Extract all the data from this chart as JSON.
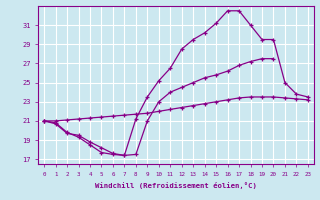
{
  "xlabel": "Windchill (Refroidissement éolien,°C)",
  "bg_color": "#cce8f0",
  "grid_color": "#ffffff",
  "line_color": "#880088",
  "xlim": [
    -0.5,
    23.5
  ],
  "ylim": [
    16.5,
    33.0
  ],
  "yticks": [
    17,
    19,
    21,
    23,
    25,
    27,
    29,
    31
  ],
  "xticks": [
    0,
    1,
    2,
    3,
    4,
    5,
    6,
    7,
    8,
    9,
    10,
    11,
    12,
    13,
    14,
    15,
    16,
    17,
    18,
    19,
    20,
    21,
    22,
    23
  ],
  "series_x_0": [
    0,
    1,
    2,
    3,
    4,
    5,
    6,
    7,
    8,
    9,
    10,
    11,
    12,
    13,
    14,
    15,
    16,
    17,
    18,
    19,
    20
  ],
  "series_y_0": [
    21.0,
    20.8,
    19.8,
    19.3,
    18.5,
    17.7,
    17.5,
    17.4,
    17.5,
    21.0,
    23.0,
    24.0,
    24.5,
    25.0,
    25.5,
    25.8,
    26.2,
    26.8,
    27.2,
    27.5,
    27.5
  ],
  "series_x_1": [
    0,
    1,
    2,
    3,
    4,
    5,
    6,
    7,
    8,
    9,
    10,
    11,
    12,
    13,
    14,
    15,
    16,
    17,
    18,
    19,
    20,
    21,
    22,
    23
  ],
  "series_y_1": [
    21.0,
    20.7,
    19.7,
    19.5,
    18.8,
    18.2,
    17.6,
    17.4,
    21.2,
    23.5,
    25.2,
    26.5,
    28.5,
    29.5,
    30.2,
    31.2,
    32.5,
    32.5,
    31.0,
    29.5,
    29.5,
    25.0,
    23.8,
    23.5
  ],
  "series_x_2": [
    0,
    1,
    2,
    3,
    4,
    5,
    6,
    7,
    8,
    9,
    10,
    11,
    12,
    13,
    14,
    15,
    16,
    17,
    18,
    19,
    20,
    21,
    22,
    23
  ],
  "series_y_2": [
    21.0,
    21.0,
    21.1,
    21.2,
    21.3,
    21.4,
    21.5,
    21.6,
    21.7,
    21.8,
    22.0,
    22.2,
    22.4,
    22.6,
    22.8,
    23.0,
    23.2,
    23.4,
    23.5,
    23.5,
    23.5,
    23.4,
    23.3,
    23.2
  ]
}
